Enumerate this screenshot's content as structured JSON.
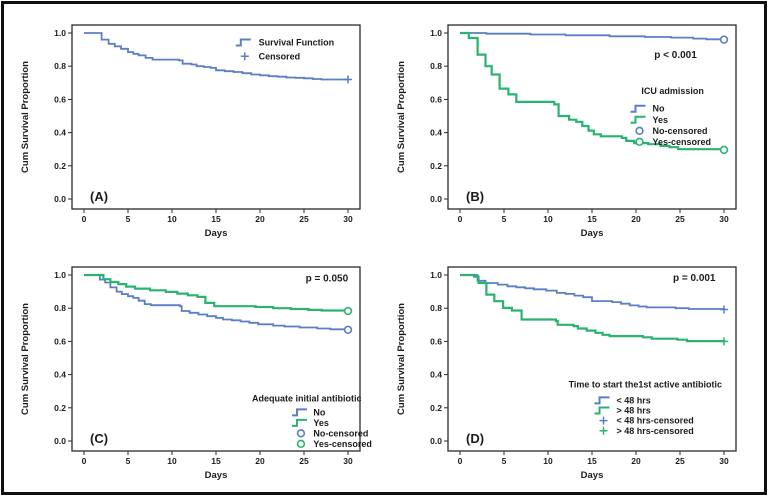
{
  "figure": {
    "description": "Kaplan-Meier cumulative survival curves, four panels",
    "panel_labels": [
      "(A)",
      "(B)",
      "(C)",
      "(D)"
    ]
  },
  "colors": {
    "blue": "#5b7ec4",
    "green": "#2bb271",
    "axis": "#2b2b2b",
    "text": "#1c1c1c"
  },
  "chart_data": [
    {
      "id": "A",
      "type": "line",
      "subtype": "kaplan-meier-step",
      "panel_label": "(A)",
      "title": "",
      "xlabel": "Days",
      "ylabel": "Cum Survival Proportion",
      "xlim": [
        0,
        30
      ],
      "ylim": [
        0.0,
        1.0
      ],
      "x_ticks": [
        "0",
        "5",
        "10",
        "15",
        "20",
        "25",
        "30"
      ],
      "y_ticks": [
        "0.0",
        "0.2",
        "0.4",
        "0.6",
        "0.8",
        "1.0"
      ],
      "grid": false,
      "p_value": null,
      "legend": {
        "title": null,
        "title_cx": 0,
        "title_y": 0,
        "glyph_x": 0.6,
        "text_x": 0.648,
        "start_y": 0.095,
        "line_h": 0.075,
        "items": [
          {
            "label": "Survival Function",
            "glyph": "step-line",
            "color": "#5b7ec4"
          },
          {
            "label": "Censored",
            "glyph": "plus",
            "color": "#5b7ec4"
          }
        ]
      },
      "series": [
        {
          "name": "Survival Function",
          "color": "#5b7ec4",
          "width": 1.8,
          "end_marker": "plus",
          "steps": [
            [
              0,
              1.0
            ],
            [
              2,
              0.96
            ],
            [
              2.8,
              0.935
            ],
            [
              3.5,
              0.92
            ],
            [
              4.2,
              0.905
            ],
            [
              5,
              0.885
            ],
            [
              5.6,
              0.875
            ],
            [
              6.2,
              0.865
            ],
            [
              7,
              0.85
            ],
            [
              7.8,
              0.84
            ],
            [
              10.8,
              0.835
            ],
            [
              11.2,
              0.815
            ],
            [
              12.2,
              0.81
            ],
            [
              12.8,
              0.8
            ],
            [
              13.6,
              0.795
            ],
            [
              14.4,
              0.79
            ],
            [
              15,
              0.775
            ],
            [
              16,
              0.77
            ],
            [
              17,
              0.765
            ],
            [
              18,
              0.758
            ],
            [
              19,
              0.75
            ],
            [
              20,
              0.745
            ],
            [
              21,
              0.74
            ],
            [
              22,
              0.737
            ],
            [
              23,
              0.732
            ],
            [
              24,
              0.73
            ],
            [
              25,
              0.727
            ],
            [
              26,
              0.723
            ],
            [
              27,
              0.72
            ],
            [
              30,
              0.72
            ]
          ]
        }
      ]
    },
    {
      "id": "B",
      "type": "line",
      "subtype": "kaplan-meier-step",
      "panel_label": "(B)",
      "title": "",
      "xlabel": "Days",
      "ylabel": "Cum Survival Proportion",
      "xlim": [
        0,
        30
      ],
      "ylim": [
        0.0,
        1.0
      ],
      "x_ticks": [
        "0",
        "5",
        "10",
        "15",
        "20",
        "25",
        "30"
      ],
      "y_ticks": [
        "0.0",
        "0.2",
        "0.4",
        "0.6",
        "0.8",
        "1.0"
      ],
      "grid": false,
      "p_value": {
        "text": "p < 0.001",
        "x": 0.79,
        "y": 0.18
      },
      "legend": {
        "title": "ICU admission",
        "title_cx": 0.78,
        "title_y": 0.375,
        "glyph_x": 0.665,
        "text_x": 0.71,
        "start_y": 0.455,
        "line_h": 0.06,
        "items": [
          {
            "label": "No",
            "glyph": "step-line",
            "color": "#5b7ec4"
          },
          {
            "label": "Yes",
            "glyph": "step-line",
            "color": "#2bb271"
          },
          {
            "label": "No-censored",
            "glyph": "open-circle",
            "color": "#5b7ec4"
          },
          {
            "label": "Yes-censored",
            "glyph": "open-circle",
            "color": "#2bb271"
          }
        ]
      },
      "series": [
        {
          "name": "No",
          "color": "#5b7ec4",
          "width": 1.8,
          "end_marker": "open-circle",
          "steps": [
            [
              0,
              1.0
            ],
            [
              3,
              0.996
            ],
            [
              8,
              0.991
            ],
            [
              12,
              0.986
            ],
            [
              17,
              0.98
            ],
            [
              21,
              0.976
            ],
            [
              24,
              0.972
            ],
            [
              26.5,
              0.966
            ],
            [
              28,
              0.962
            ],
            [
              30,
              0.96
            ]
          ]
        },
        {
          "name": "Yes",
          "color": "#2bb271",
          "width": 2.2,
          "end_marker": "open-circle",
          "steps": [
            [
              0,
              1.0
            ],
            [
              1,
              0.97
            ],
            [
              2,
              0.87
            ],
            [
              2.9,
              0.8
            ],
            [
              3.6,
              0.75
            ],
            [
              4.5,
              0.665
            ],
            [
              5.5,
              0.63
            ],
            [
              6.4,
              0.585
            ],
            [
              10.7,
              0.57
            ],
            [
              11.2,
              0.5
            ],
            [
              12.4,
              0.478
            ],
            [
              13.2,
              0.465
            ],
            [
              13.9,
              0.44
            ],
            [
              14.6,
              0.412
            ],
            [
              15.2,
              0.39
            ],
            [
              16,
              0.378
            ],
            [
              18.4,
              0.368
            ],
            [
              18.9,
              0.35
            ],
            [
              19.8,
              0.337
            ],
            [
              21.4,
              0.33
            ],
            [
              22.8,
              0.32
            ],
            [
              23.8,
              0.312
            ],
            [
              24.8,
              0.3
            ],
            [
              30,
              0.296
            ]
          ]
        }
      ]
    },
    {
      "id": "C",
      "type": "line",
      "subtype": "kaplan-meier-step",
      "panel_label": "(C)",
      "title": "",
      "xlabel": "Days",
      "ylabel": "Cum Survival Proportion",
      "xlim": [
        0,
        30
      ],
      "ylim": [
        0.0,
        1.0
      ],
      "x_ticks": [
        "0",
        "5",
        "10",
        "15",
        "20",
        "25",
        "30"
      ],
      "y_ticks": [
        "0.0",
        "0.2",
        "0.4",
        "0.6",
        "0.8",
        "1.0"
      ],
      "grid": false,
      "p_value": {
        "text": "p = 0.050",
        "x": 0.885,
        "y": 0.08
      },
      "legend": {
        "title": "Adequate initial antibiotic",
        "title_cx": 0.815,
        "title_y": 0.73,
        "glyph_x": 0.795,
        "text_x": 0.838,
        "start_y": 0.79,
        "line_h": 0.057,
        "items": [
          {
            "label": "No",
            "glyph": "step-line",
            "color": "#5b7ec4"
          },
          {
            "label": "Yes",
            "glyph": "step-line",
            "color": "#2bb271"
          },
          {
            "label": "No-censored",
            "glyph": "open-circle",
            "color": "#5b7ec4"
          },
          {
            "label": "Yes-censored",
            "glyph": "open-circle",
            "color": "#2bb271"
          }
        ]
      },
      "series": [
        {
          "name": "No",
          "color": "#5b7ec4",
          "width": 1.8,
          "end_marker": "open-circle",
          "steps": [
            [
              0,
              1.0
            ],
            [
              1.8,
              0.972
            ],
            [
              2.4,
              0.955
            ],
            [
              3,
              0.925
            ],
            [
              3.7,
              0.9
            ],
            [
              4.3,
              0.885
            ],
            [
              5,
              0.872
            ],
            [
              5.6,
              0.862
            ],
            [
              6.2,
              0.845
            ],
            [
              6.9,
              0.825
            ],
            [
              7.6,
              0.818
            ],
            [
              10.9,
              0.812
            ],
            [
              11.1,
              0.783
            ],
            [
              12,
              0.772
            ],
            [
              13,
              0.762
            ],
            [
              14,
              0.752
            ],
            [
              15,
              0.742
            ],
            [
              15.8,
              0.732
            ],
            [
              16.8,
              0.727
            ],
            [
              17.8,
              0.72
            ],
            [
              18.8,
              0.712
            ],
            [
              19.8,
              0.703
            ],
            [
              21.5,
              0.695
            ],
            [
              22.8,
              0.69
            ],
            [
              24.5,
              0.684
            ],
            [
              26.5,
              0.678
            ],
            [
              28,
              0.673
            ],
            [
              30,
              0.67
            ]
          ]
        },
        {
          "name": "Yes",
          "color": "#2bb271",
          "width": 2.2,
          "end_marker": "open-circle",
          "steps": [
            [
              0,
              1.0
            ],
            [
              2.2,
              0.975
            ],
            [
              3,
              0.958
            ],
            [
              3.9,
              0.945
            ],
            [
              4.8,
              0.93
            ],
            [
              5.8,
              0.918
            ],
            [
              7.5,
              0.908
            ],
            [
              9.3,
              0.898
            ],
            [
              10.6,
              0.888
            ],
            [
              11.8,
              0.878
            ],
            [
              12.9,
              0.868
            ],
            [
              13.8,
              0.832
            ],
            [
              14.8,
              0.812
            ],
            [
              19.5,
              0.807
            ],
            [
              21.5,
              0.8
            ],
            [
              23.5,
              0.795
            ],
            [
              25.5,
              0.79
            ],
            [
              27,
              0.786
            ],
            [
              30,
              0.783
            ]
          ]
        }
      ]
    },
    {
      "id": "D",
      "type": "line",
      "subtype": "kaplan-meier-step",
      "panel_label": "(D)",
      "title": "",
      "xlabel": "Days",
      "ylabel": "Cum Survival Proportion",
      "xlim": [
        0,
        30
      ],
      "ylim": [
        0.0,
        1.0
      ],
      "x_ticks": [
        "0",
        "5",
        "10",
        "15",
        "20",
        "25",
        "30"
      ],
      "y_ticks": [
        "0.0",
        "0.2",
        "0.4",
        "0.6",
        "0.8",
        "1.0"
      ],
      "grid": false,
      "p_value": {
        "text": "p = 0.001",
        "x": 0.855,
        "y": 0.075
      },
      "legend": {
        "title": "Time to start the1st active antibiotic",
        "title_cx": 0.685,
        "title_y": 0.655,
        "glyph_x": 0.54,
        "text_x": 0.585,
        "start_y": 0.725,
        "line_h": 0.055,
        "items": [
          {
            "label": "< 48 hrs",
            "glyph": "step-line",
            "color": "#5b7ec4"
          },
          {
            "label": "> 48 hrs",
            "glyph": "step-line",
            "color": "#2bb271"
          },
          {
            "label": "< 48 hrs-censored",
            "glyph": "plus",
            "color": "#5b7ec4"
          },
          {
            "label": "> 48 hrs-censored",
            "glyph": "plus",
            "color": "#2bb271"
          }
        ]
      },
      "series": [
        {
          "name": "< 48 hrs",
          "color": "#5b7ec4",
          "width": 1.8,
          "end_marker": "plus",
          "steps": [
            [
              0,
              1.0
            ],
            [
              2,
              0.965
            ],
            [
              2.9,
              0.952
            ],
            [
              4.3,
              0.942
            ],
            [
              5.4,
              0.932
            ],
            [
              6.4,
              0.926
            ],
            [
              7.4,
              0.92
            ],
            [
              8.4,
              0.914
            ],
            [
              9.8,
              0.906
            ],
            [
              11,
              0.892
            ],
            [
              12,
              0.886
            ],
            [
              13,
              0.876
            ],
            [
              14,
              0.866
            ],
            [
              15,
              0.843
            ],
            [
              17.3,
              0.837
            ],
            [
              18.3,
              0.827
            ],
            [
              19.3,
              0.817
            ],
            [
              20.3,
              0.81
            ],
            [
              21.2,
              0.805
            ],
            [
              24.5,
              0.8
            ],
            [
              26,
              0.795
            ],
            [
              30,
              0.792
            ]
          ]
        },
        {
          "name": "> 48 hrs",
          "color": "#2bb271",
          "width": 2.2,
          "end_marker": "plus",
          "steps": [
            [
              0,
              1.0
            ],
            [
              1.6,
              0.99
            ],
            [
              2.1,
              0.952
            ],
            [
              3,
              0.882
            ],
            [
              3.9,
              0.842
            ],
            [
              4.9,
              0.802
            ],
            [
              5.9,
              0.786
            ],
            [
              7,
              0.732
            ],
            [
              10.9,
              0.722
            ],
            [
              11.1,
              0.7
            ],
            [
              12.9,
              0.692
            ],
            [
              13.4,
              0.678
            ],
            [
              14.4,
              0.665
            ],
            [
              15.4,
              0.652
            ],
            [
              16.2,
              0.64
            ],
            [
              17,
              0.632
            ],
            [
              20.8,
              0.625
            ],
            [
              21.8,
              0.616
            ],
            [
              24.7,
              0.61
            ],
            [
              25.8,
              0.602
            ],
            [
              30,
              0.6
            ]
          ]
        }
      ]
    }
  ]
}
